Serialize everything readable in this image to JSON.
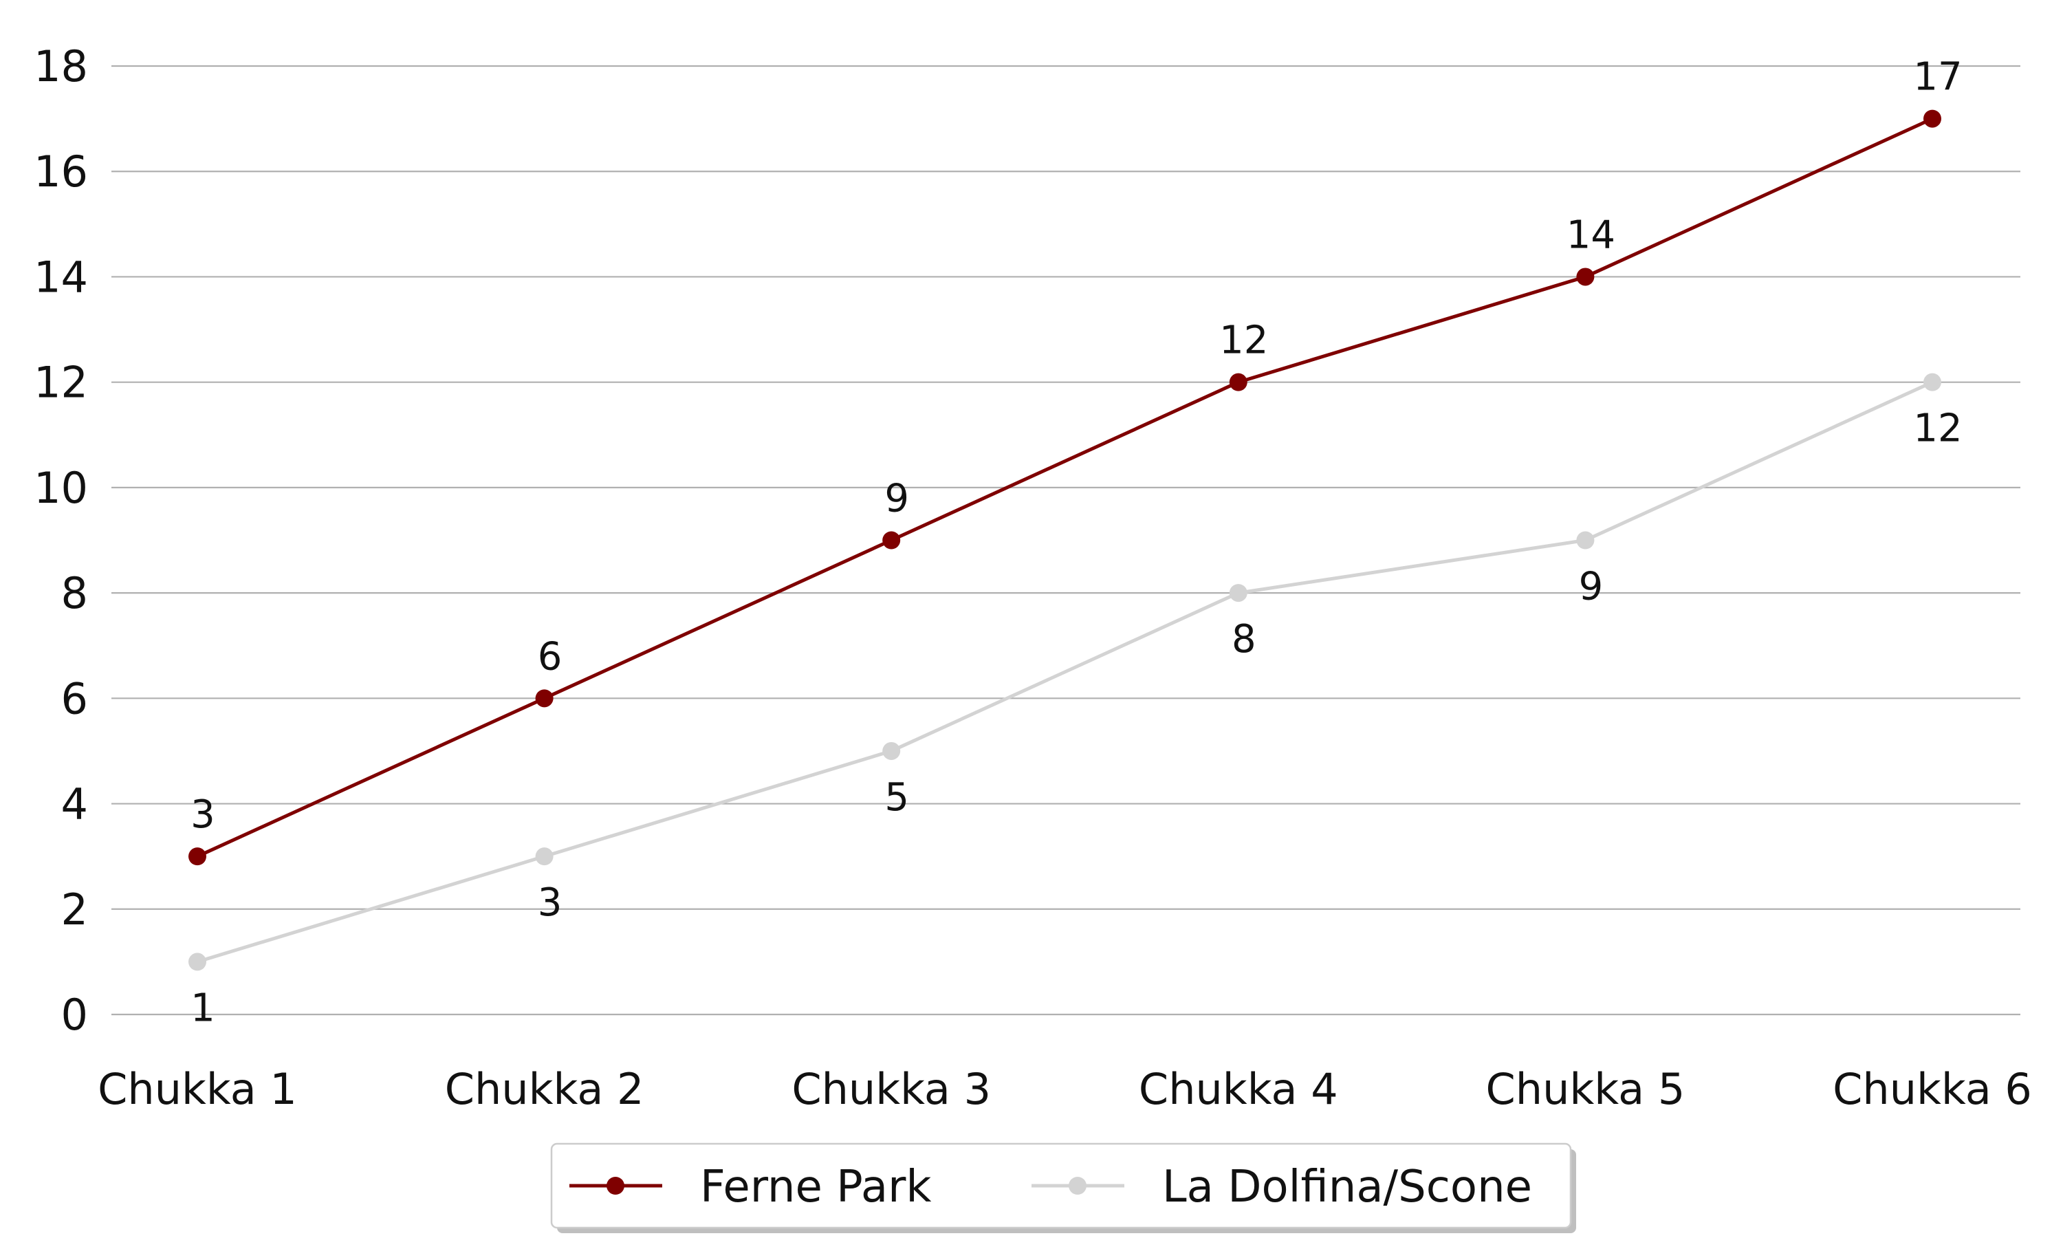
{
  "chart_data": {
    "type": "line",
    "categories": [
      "Chukka 1",
      "Chukka 2",
      "Chukka 3",
      "Chukka 4",
      "Chukka 5",
      "Chukka 6"
    ],
    "series": [
      {
        "name": "Ferne Park",
        "values": [
          3,
          6,
          9,
          12,
          14,
          17
        ],
        "color": "#7f0000",
        "label_position": "above"
      },
      {
        "name": "La Dolfina/Scone",
        "values": [
          1,
          3,
          5,
          8,
          9,
          12
        ],
        "color": "#d3d3d3",
        "label_position": "below"
      }
    ],
    "title": "",
    "xlabel": "",
    "ylabel": "",
    "ylim": [
      0,
      18
    ],
    "yticks": [
      0,
      2,
      4,
      6,
      8,
      10,
      12,
      14,
      16,
      18
    ],
    "grid": "horizontal",
    "legend_position": "bottom-center"
  }
}
